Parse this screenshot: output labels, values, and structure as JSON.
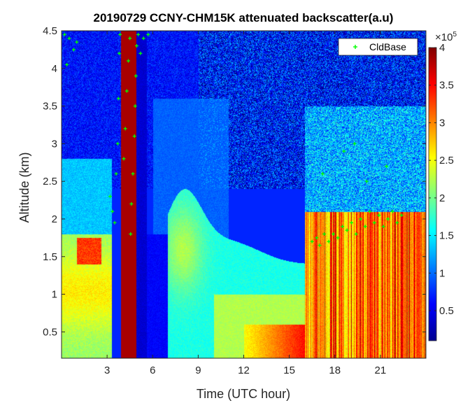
{
  "chart_data": {
    "type": "heatmap",
    "title": "20190729 CCNY-CHM15K attenuated backscatter(a.u)",
    "xlabel": "Time (UTC hour)",
    "ylabel": "Altitude (km)",
    "xlim": [
      0,
      24
    ],
    "ylim": [
      0.15,
      4.5
    ],
    "x_ticks": [
      3,
      6,
      9,
      12,
      15,
      18,
      21
    ],
    "x_tick_labels": [
      "3",
      "6",
      "9",
      "12",
      "15",
      "18",
      "21"
    ],
    "y_ticks": [
      0.5,
      1,
      1.5,
      2,
      2.5,
      3,
      3.5,
      4,
      4.5
    ],
    "y_tick_labels": [
      "0.5",
      "1",
      "1.5",
      "2",
      "2.5",
      "3",
      "3.5",
      "4",
      "4.5"
    ],
    "colorbar": {
      "colormap": "jet",
      "clim": [
        0.1,
        4
      ],
      "ticks": [
        0.5,
        1,
        1.5,
        2,
        2.5,
        3,
        3.5,
        4
      ],
      "tick_labels": [
        "0.5",
        "1",
        "1.5",
        "2",
        "2.5",
        "3",
        "3.5",
        "4"
      ],
      "multiplier": "×10",
      "exponent": "5"
    },
    "legend": {
      "entries": [
        "CldBase"
      ],
      "location": "top-right",
      "marker": "+",
      "color": "#00ff00"
    },
    "grid": false,
    "cloud_base": {
      "name": "CldBase",
      "points": [
        [
          0.2,
          4.45
        ],
        [
          0.5,
          4.4
        ],
        [
          0.8,
          4.25
        ],
        [
          0.35,
          4.05
        ],
        [
          1.0,
          4.35
        ],
        [
          3.2,
          2.3
        ],
        [
          3.35,
          2.1
        ],
        [
          3.5,
          1.95
        ],
        [
          3.6,
          2.6
        ],
        [
          3.7,
          3.0
        ],
        [
          3.75,
          3.6
        ],
        [
          3.8,
          4.2
        ],
        [
          3.85,
          4.45
        ],
        [
          4.1,
          2.8
        ],
        [
          4.2,
          3.2
        ],
        [
          4.3,
          3.7
        ],
        [
          4.4,
          4.1
        ],
        [
          4.5,
          4.4
        ],
        [
          4.55,
          1.8
        ],
        [
          4.6,
          2.2
        ],
        [
          4.7,
          2.6
        ],
        [
          4.8,
          3.1
        ],
        [
          4.85,
          3.5
        ],
        [
          4.9,
          3.9
        ],
        [
          4.95,
          4.3
        ],
        [
          5.05,
          4.45
        ],
        [
          5.2,
          4.2
        ],
        [
          5.4,
          4.4
        ],
        [
          5.7,
          4.45
        ],
        [
          16.5,
          1.7
        ],
        [
          16.8,
          1.75
        ],
        [
          17.0,
          1.65
        ],
        [
          17.3,
          1.8
        ],
        [
          17.6,
          1.7
        ],
        [
          17.9,
          1.8
        ],
        [
          18.2,
          1.75
        ],
        [
          18.5,
          1.9
        ],
        [
          18.8,
          1.85
        ],
        [
          19.1,
          1.95
        ],
        [
          19.4,
          1.8
        ],
        [
          19.7,
          2.0
        ],
        [
          20.0,
          1.9
        ],
        [
          20.3,
          2.1
        ],
        [
          20.6,
          1.95
        ],
        [
          20.9,
          2.05
        ],
        [
          21.2,
          1.9
        ],
        [
          21.5,
          2.0
        ],
        [
          21.8,
          2.1
        ],
        [
          22.1,
          1.95
        ],
        [
          22.4,
          2.05
        ],
        [
          17.2,
          2.6
        ],
        [
          18.6,
          2.9
        ],
        [
          20.1,
          2.5
        ],
        [
          21.4,
          2.7
        ],
        [
          19.3,
          3.0
        ]
      ]
    }
  }
}
